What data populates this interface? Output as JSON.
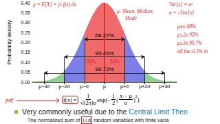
{
  "chart_data": {
    "type": "area",
    "y_label": "Probability density",
    "x": [
      -3.6,
      -3.4,
      -3.2,
      -3,
      -2.8,
      -2.6,
      -2.4,
      -2.2,
      -2,
      -1.8,
      -1.6,
      -1.4,
      -1.2,
      -1,
      -0.8,
      -0.6,
      -0.4,
      -0.2,
      0,
      0.2,
      0.4,
      0.6,
      0.8,
      1,
      1.2,
      1.4,
      1.6,
      1.8,
      2,
      2.2,
      2.4,
      2.6,
      2.8,
      3,
      3.2,
      3.4,
      3.6
    ],
    "series": [
      {
        "color": "#8fd08f",
        "values": [
          0.001,
          0.001,
          0.002,
          0.004,
          0.008,
          0.014,
          0.022,
          0.035,
          0.054,
          null,
          null,
          null,
          null,
          null,
          null,
          null,
          null,
          null,
          null,
          null,
          null,
          null,
          null,
          null,
          null,
          null,
          null,
          null,
          0.054,
          0.035,
          0.022,
          0.014,
          0.008,
          0.004,
          0.002,
          0.001,
          0.001
        ]
      },
      {
        "color": "#7d7fe8",
        "values": [
          null,
          null,
          null,
          null,
          null,
          null,
          null,
          null,
          0.054,
          0.079,
          0.111,
          0.15,
          0.194,
          0.242,
          null,
          null,
          null,
          null,
          null,
          null,
          null,
          null,
          null,
          0.242,
          0.194,
          0.15,
          0.111,
          0.079,
          0.054,
          null,
          null,
          null,
          null,
          null,
          null,
          null,
          null
        ]
      },
      {
        "color": "#ef6a6a",
        "values": [
          null,
          null,
          null,
          null,
          null,
          null,
          null,
          null,
          null,
          null,
          null,
          null,
          null,
          0.242,
          0.29,
          0.333,
          0.368,
          0.391,
          0.399,
          0.391,
          0.368,
          0.333,
          0.29,
          0.242,
          null,
          null,
          null,
          null,
          null,
          null,
          null,
          null,
          null,
          null,
          null,
          null,
          null
        ]
      }
    ],
    "xlim": [
      -3.6,
      3.6
    ],
    "xticks": [
      {
        "value": -3,
        "label": "μ−3σ"
      },
      {
        "value": -2,
        "label": "μ−2σ"
      },
      {
        "value": -1,
        "label": "μ−σ"
      },
      {
        "value": 0,
        "label": "μ"
      },
      {
        "value": 1,
        "label": "μ+σ"
      },
      {
        "value": 2,
        "label": "μ+2σ"
      },
      {
        "value": 3,
        "label": "μ+3σ"
      }
    ],
    "ylim": [
      0,
      0.4
    ],
    "yticks": [
      {
        "value": 0,
        "label": "0.00"
      },
      {
        "value": 0.05,
        "label": "0.05"
      },
      {
        "value": 0.1,
        "label": "0.10"
      },
      {
        "value": 0.15,
        "label": "0.15"
      },
      {
        "value": 0.2,
        "label": "0.20"
      },
      {
        "value": 0.25,
        "label": "0.25"
      },
      {
        "value": 0.3,
        "label": "0.30"
      },
      {
        "value": 0.35,
        "label": "0.35"
      },
      {
        "value": 0.4,
        "label": "0.40"
      }
    ],
    "intervals": [
      {
        "label": "68.27%",
        "from": -1,
        "to": 1,
        "y": 0.216
      },
      {
        "label": "95.45%",
        "from": -2,
        "to": 2,
        "y": 0.127
      },
      {
        "label": "99.73%",
        "from": -3,
        "to": 3,
        "y": 0.046
      }
    ],
    "mean_line": {
      "x": 0,
      "color": "#e01b1b"
    },
    "grid": false
  },
  "slide": {
    "notes_color": "#e01b1b",
    "notes": [
      "μ = E[X] = ∫x f(x) dx",
      "μ: Mean, Median,",
      "Mode",
      "Var[x] = σ²",
      "σ = √Var[x]",
      "μ±σ  68%",
      "μ±2σ  95%",
      "μ±3σ  99.7%",
      "all but 0.3% in",
      "50%",
      "50%",
      "pdf"
    ],
    "formula": [
      "f(x) = ",
      {
        "num": "1",
        "den": "√(2π)σ"
      },
      "exp(−",
      {
        "num": "1",
        "den": "2"
      },
      "(",
      {
        "num": "x − μ",
        "den": "σ"
      },
      ")",
      {
        "sup": "2"
      },
      ")"
    ],
    "bullet": [
      {
        "text": "Very commonly useful due to the "
      },
      {
        "text": "Central Limit Theo",
        "color": "#1a7fa8"
      }
    ],
    "text_line": [
      {
        "text": "The normalized sum of "
      },
      {
        "text": "i.i.d",
        "circled": true
      },
      {
        "text": " random variables with finite varia"
      }
    ]
  }
}
